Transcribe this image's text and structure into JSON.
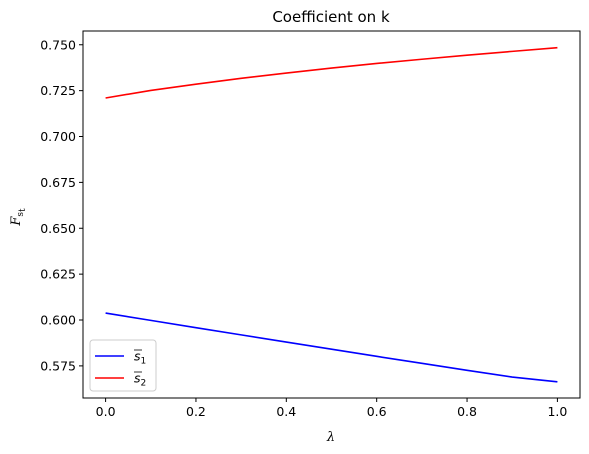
{
  "chart_data": {
    "type": "line",
    "title": "Coefficient on k",
    "xlabel": "λ",
    "ylabel": "F",
    "ylabel_sub": "s",
    "ylabel_subsub": "t",
    "xlim": [
      -0.05,
      1.05
    ],
    "ylim": [
      0.5575,
      0.7575
    ],
    "xticks": [
      0.0,
      0.2,
      0.4,
      0.6,
      0.8,
      1.0
    ],
    "xtick_labels": [
      "0.0",
      "0.2",
      "0.4",
      "0.6",
      "0.8",
      "1.0"
    ],
    "yticks": [
      0.575,
      0.6,
      0.625,
      0.65,
      0.675,
      0.7,
      0.725,
      0.75
    ],
    "ytick_labels": [
      "0.575",
      "0.600",
      "0.625",
      "0.650",
      "0.675",
      "0.700",
      "0.725",
      "0.750"
    ],
    "grid": false,
    "legend_position": "lower-left",
    "series": [
      {
        "name": "s",
        "subscript": "1",
        "color": "#0000ff",
        "x": [
          0.0,
          0.1,
          0.2,
          0.3,
          0.4,
          0.5,
          0.6,
          0.7,
          0.8,
          0.9,
          1.0
        ],
        "y": [
          0.6038,
          0.5998,
          0.5958,
          0.5919,
          0.588,
          0.5841,
          0.5802,
          0.5764,
          0.5726,
          0.5689,
          0.5663
        ]
      },
      {
        "name": "s",
        "subscript": "2",
        "color": "#ff0000",
        "x": [
          0.0,
          0.1,
          0.2,
          0.3,
          0.4,
          0.5,
          0.6,
          0.7,
          0.8,
          0.9,
          1.0
        ],
        "y": [
          0.721,
          0.7251,
          0.7285,
          0.7317,
          0.7346,
          0.7373,
          0.7398,
          0.7421,
          0.7443,
          0.7464,
          0.7484
        ]
      }
    ]
  }
}
